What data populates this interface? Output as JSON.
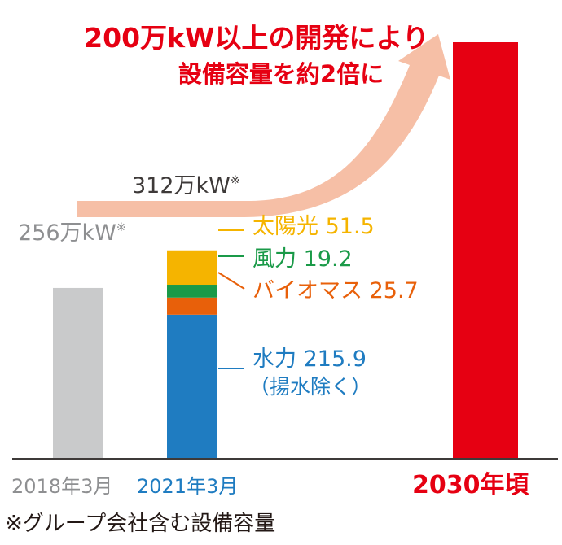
{
  "colors": {
    "headline": "#e60012",
    "arrow": "#f6bfa6",
    "bar_2018": "#c9cacb",
    "bar_2030": "#e60012",
    "total_label_2018": "#8e8f91",
    "total_label_2021": "#3e3a39",
    "x_label_2018": "#8e8f91",
    "x_label_2021": "#1f7cc1",
    "x_label_2030": "#e60012",
    "footnote": "#231815",
    "axis": "#3e3a39"
  },
  "headline": {
    "line1": "200万kW以上の開発により",
    "line2": "設備容量を約2倍に"
  },
  "footnote": "※グループ会社含む設備容量",
  "chart_data": {
    "type": "bar",
    "unit": "万kW",
    "categories": [
      "2018年3月",
      "2021年3月",
      "2030年頃"
    ],
    "ylim": [
      0,
      624
    ],
    "bars": [
      {
        "category": "2018年3月",
        "total": 256,
        "total_label": "256万kW",
        "mark": "※"
      },
      {
        "category": "2021年3月",
        "total": 312,
        "total_label": "312万kW",
        "mark": "※",
        "segments": [
          {
            "name": "水力",
            "value": 215.9,
            "label": "水力 215.9",
            "note": "（揚水除く）",
            "color": "#1f7cc1"
          },
          {
            "name": "バイオマス",
            "value": 25.7,
            "label": "バイオマス 25.7",
            "color": "#e8600a"
          },
          {
            "name": "風力",
            "value": 19.2,
            "label": "風力 19.2",
            "color": "#1a9a48"
          },
          {
            "name": "太陽光",
            "value": 51.5,
            "label": "太陽光 51.5",
            "color": "#f5b400"
          }
        ]
      },
      {
        "category": "2030年頃",
        "total": 624
      }
    ]
  }
}
